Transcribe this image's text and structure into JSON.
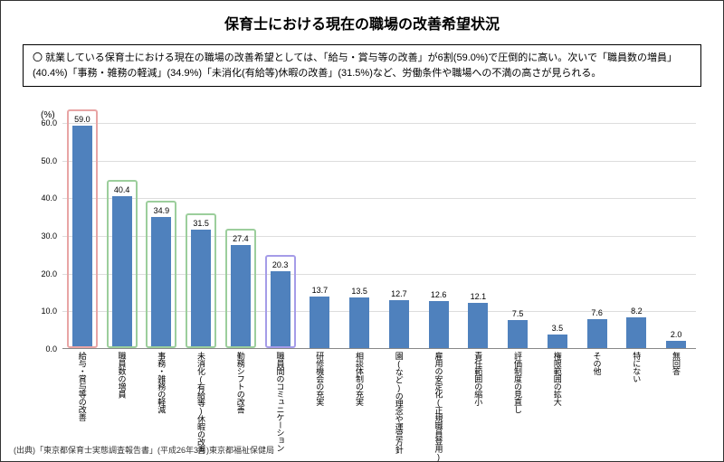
{
  "title": "保育士における現在の職場の改善希望状況",
  "description": "〇 就業している保育士における現在の職場の改善希望としては、「給与・賞与等の改善」が6割(59.0%)で圧倒的に高い。次いで「職員数の増員」(40.4%)「事務・雑務の軽減」(34.9%)「未消化(有給等)休暇の改善」(31.5%)など、労働条件や職場への不満の高さが見られる。",
  "source": "(出典)「東京都保育士実態調査報告書」(平成26年3月)東京都福祉保健局",
  "chart": {
    "type": "bar",
    "y_unit": "(%)",
    "ylim": [
      0,
      60
    ],
    "ytick_step": 10,
    "yticks": [
      "0.0",
      "10.0",
      "20.0",
      "30.0",
      "40.0",
      "50.0",
      "60.0"
    ],
    "bar_color": "#4f81bd",
    "grid_color": "#dddddd",
    "highlight_colors": {
      "red": "#e8a5a5",
      "green": "#9cce9c",
      "purple": "#a59ce8"
    },
    "items": [
      {
        "label": "給与・賞与等の改善",
        "value": 59.0,
        "hl": "red"
      },
      {
        "label": "職員数の増員",
        "value": 40.4,
        "hl": "green"
      },
      {
        "label": "事務・雑務の軽減",
        "value": 34.9,
        "hl": "green"
      },
      {
        "label": "未消化(有給等)休暇の改善",
        "value": 31.5,
        "hl": "green"
      },
      {
        "label": "勤務シフトの改善",
        "value": 27.4,
        "hl": "green"
      },
      {
        "label": "職員間のコミュニケーション",
        "value": 20.3,
        "hl": "purple"
      },
      {
        "label": "研修機会の充実",
        "value": 13.7
      },
      {
        "label": "相談体制の充実",
        "value": 13.5
      },
      {
        "label": "園(など)の理念や運営方針",
        "value": 12.7
      },
      {
        "label": "雇用の安定化(正規職員登用)",
        "value": 12.6
      },
      {
        "label": "責任範囲の縮小",
        "value": 12.1
      },
      {
        "label": "評価制度の見直し",
        "value": 7.5
      },
      {
        "label": "権限範囲の拡大",
        "value": 3.5
      },
      {
        "label": "その他",
        "value": 7.6
      },
      {
        "label": "特にない",
        "value": 8.2
      },
      {
        "label": "無回答",
        "value": 2.0
      }
    ]
  }
}
